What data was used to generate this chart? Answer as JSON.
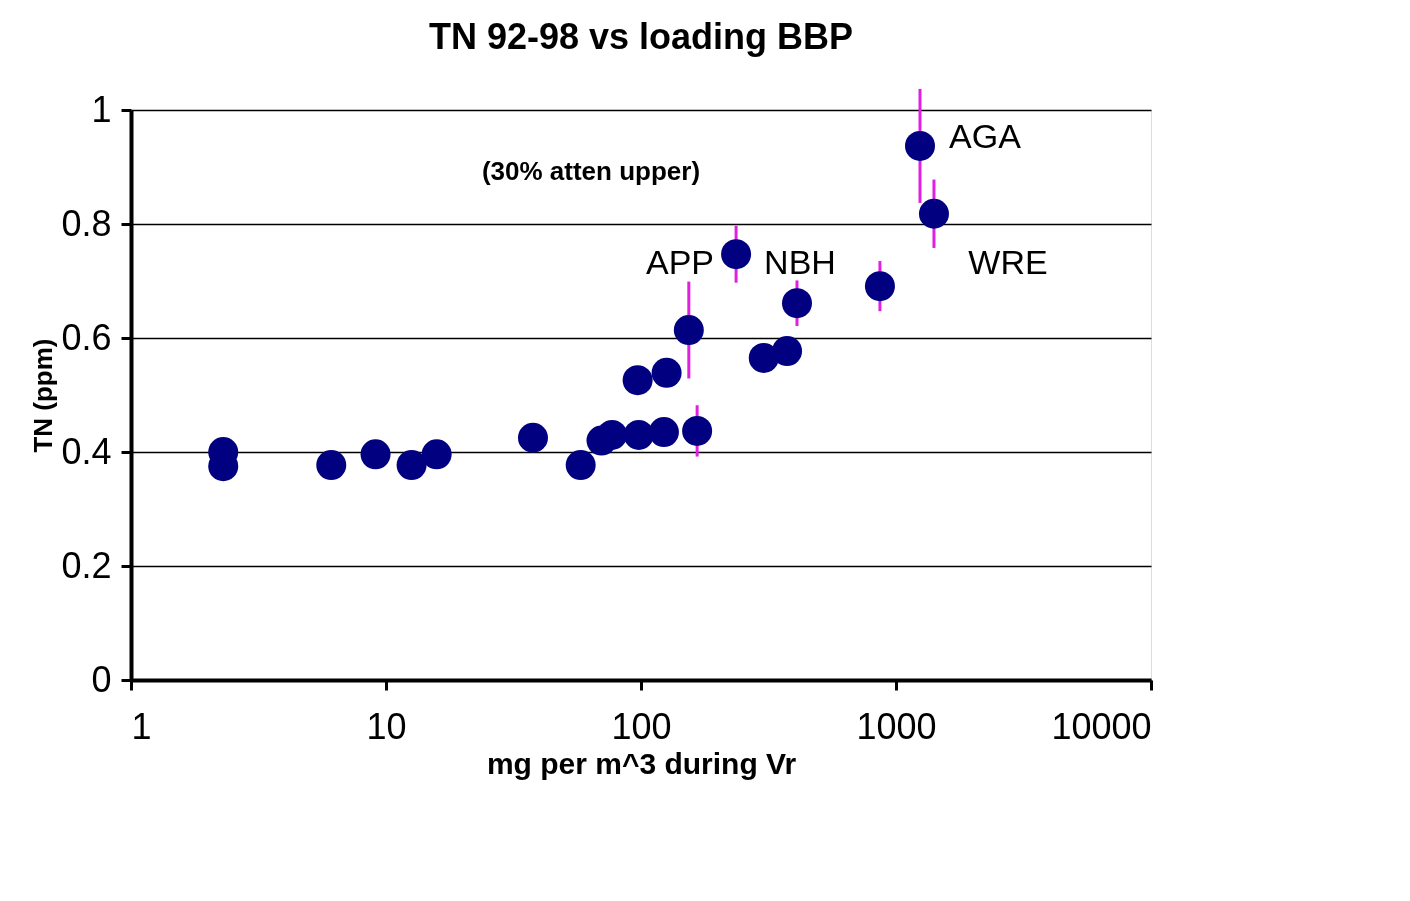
{
  "chart_data": {
    "type": "scatter",
    "title": "TN 92-98 vs loading BBP",
    "xlabel": "mg per m^3 during Vr",
    "ylabel": "TN (ppm)",
    "log": "x",
    "xlim": [
      1,
      10000
    ],
    "xticks": [
      1,
      10,
      100,
      1000,
      10000
    ],
    "ylim": [
      0,
      1
    ],
    "yticks": [
      0,
      0.2,
      0.4,
      0.6,
      0.8,
      1
    ],
    "grid": "y",
    "marker": "circle",
    "series": [
      {
        "color": "#000080",
        "x": [
          2.3,
          2.3,
          6.1,
          9.1,
          12.6,
          15.8,
          37.7,
          58,
          70,
          77,
          98,
          123,
          166,
          97,
          126,
          154,
          236,
          303,
          374,
          409,
          865,
          1242,
          1409
        ],
        "values": [
          0.375,
          0.4,
          0.377,
          0.396,
          0.377,
          0.396,
          0.425,
          0.377,
          0.42,
          0.43,
          0.43,
          0.435,
          0.437,
          0.526,
          0.539,
          0.614,
          0.747,
          0.565,
          0.577,
          0.661,
          0.691,
          0.937,
          0.818
        ],
        "errors": [
          null,
          null,
          null,
          null,
          null,
          null,
          null,
          null,
          null,
          null,
          null,
          null,
          0.045,
          null,
          null,
          0.085,
          0.05,
          null,
          null,
          0.04,
          0.044,
          0.1,
          0.06
        ]
      }
    ],
    "annotations": [
      "(30% atten upper)",
      "APP",
      "NBH",
      "AGA",
      "WRE"
    ]
  }
}
